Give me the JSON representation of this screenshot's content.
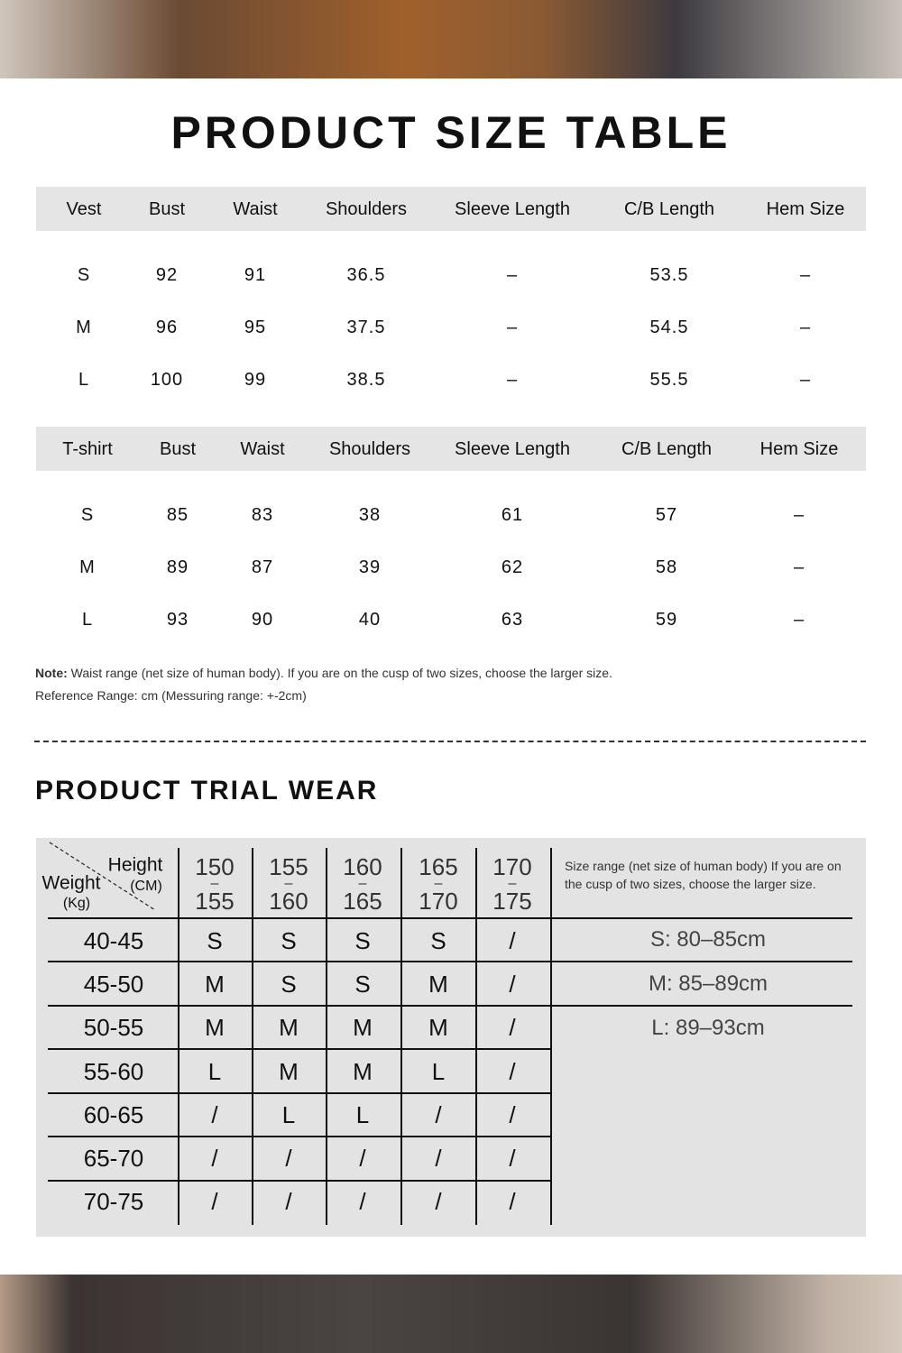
{
  "title": "PRODUCT SIZE TABLE",
  "vest": {
    "headers": [
      "Vest",
      "Bust",
      "Waist",
      "Shoulders",
      "Sleeve Length",
      "C/B  Length",
      "Hem Size"
    ],
    "rows": [
      [
        "S",
        "92",
        "91",
        "36.5",
        "–",
        "53.5",
        "–"
      ],
      [
        "M",
        "96",
        "95",
        "37.5",
        "–",
        "54.5",
        "–"
      ],
      [
        "L",
        "100",
        "99",
        "38.5",
        "–",
        "55.5",
        "–"
      ]
    ]
  },
  "tshirt": {
    "headers": [
      "T-shirt",
      "Bust",
      "Waist",
      "Shoulders",
      "Sleeve Length",
      "C/B  Length",
      "Hem Size"
    ],
    "rows": [
      [
        "S",
        "85",
        "83",
        "38",
        "61",
        "57",
        "–"
      ],
      [
        "M",
        "89",
        "87",
        "39",
        "62",
        "58",
        "–"
      ],
      [
        "L",
        "93",
        "90",
        "40",
        "63",
        "59",
        "–"
      ]
    ]
  },
  "note": {
    "label": "Note:",
    "text": " Waist range (net size of human body). If you are on the cusp of two sizes, choose the larger size.",
    "reference": "Reference Range: cm (Messuring range: +-2cm)"
  },
  "trial": {
    "title": "PRODUCT TRIAL WEAR",
    "corner": {
      "height": "Height",
      "cm": "(CM)",
      "weight": "Weight",
      "kg": "(Kg)"
    },
    "heights": [
      [
        "150",
        "155"
      ],
      [
        "155",
        "160"
      ],
      [
        "160",
        "165"
      ],
      [
        "165",
        "170"
      ],
      [
        "170",
        "175"
      ]
    ],
    "rows": [
      [
        "40-45",
        "S",
        "S",
        "S",
        "S",
        "/"
      ],
      [
        "45-50",
        "M",
        "S",
        "S",
        "M",
        "/"
      ],
      [
        "50-55",
        "M",
        "M",
        "M",
        "M",
        "/"
      ],
      [
        "55-60",
        "L",
        "M",
        "M",
        "L",
        "/"
      ],
      [
        "60-65",
        "/",
        "L",
        "L",
        "/",
        "/"
      ],
      [
        "65-70",
        "/",
        "/",
        "/",
        "/",
        "/"
      ],
      [
        "70-75",
        "/",
        "/",
        "/",
        "/",
        "/"
      ]
    ],
    "size_note": "Size range (net size of human body) If you are on the cusp of two sizes, choose the larger size.",
    "ranges": [
      "S: 80–85cm",
      "M: 85–89cm",
      "L: 89–93cm"
    ]
  }
}
